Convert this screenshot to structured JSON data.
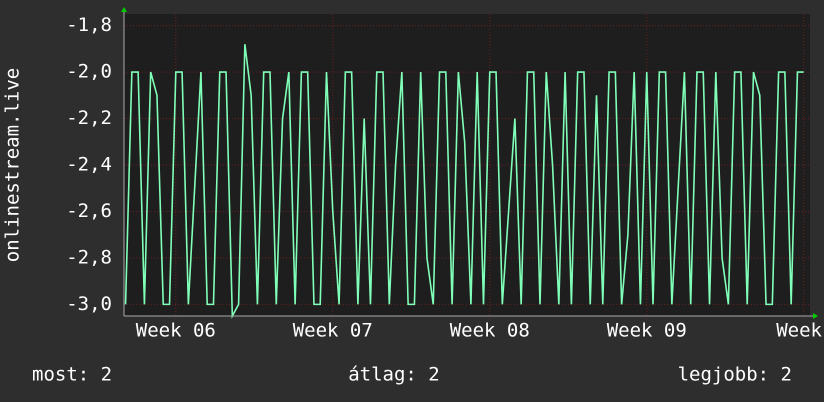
{
  "chart_data": {
    "type": "line",
    "y_label": "onlinestream.live",
    "x": [
      5.68,
      5.72,
      5.76,
      5.8,
      5.84,
      5.88,
      5.92,
      5.96,
      6,
      6.04,
      6.08,
      6.12,
      6.16,
      6.2,
      6.24,
      6.28,
      6.32,
      6.36,
      6.4,
      6.44,
      6.48,
      6.52,
      6.56,
      6.6,
      6.64,
      6.68,
      6.72,
      6.76,
      6.8,
      6.84,
      6.88,
      6.92,
      6.96,
      7,
      7.04,
      7.08,
      7.12,
      7.16,
      7.2,
      7.24,
      7.28,
      7.32,
      7.36,
      7.4,
      7.44,
      7.48,
      7.52,
      7.56,
      7.6,
      7.64,
      7.68,
      7.72,
      7.76,
      7.8,
      7.84,
      7.88,
      7.92,
      7.96,
      8,
      8.04,
      8.08,
      8.12,
      8.16,
      8.2,
      8.24,
      8.28,
      8.32,
      8.36,
      8.4,
      8.44,
      8.48,
      8.52,
      8.56,
      8.6,
      8.64,
      8.68,
      8.72,
      8.76,
      8.8,
      8.84,
      8.88,
      8.92,
      8.96,
      9,
      9.04,
      9.08,
      9.12,
      9.16,
      9.2,
      9.24,
      9.28,
      9.32,
      9.36,
      9.4,
      9.44,
      9.48,
      9.52,
      9.56,
      9.6,
      9.64,
      9.68,
      9.72,
      9.76,
      9.8,
      9.84,
      9.88,
      9.92,
      9.96,
      10
    ],
    "series": [
      {
        "color": "#80ffb8",
        "values": [
          -3,
          -2,
          -2,
          -3,
          -2,
          -2.1,
          -3,
          -3,
          -2,
          -2,
          -3,
          -2.5,
          -2,
          -3,
          -3,
          -2,
          -2,
          -3.05,
          -3,
          -1.88,
          -2.1,
          -3,
          -2,
          -2,
          -3,
          -2.2,
          -2,
          -3,
          -2,
          -2,
          -3,
          -3,
          -2,
          -2.6,
          -3,
          -2,
          -2,
          -3,
          -2.2,
          -3,
          -2,
          -2,
          -3,
          -2.4,
          -2,
          -3,
          -3,
          -2,
          -2.8,
          -3,
          -2,
          -2,
          -3,
          -2,
          -2.3,
          -3,
          -2,
          -3,
          -2,
          -2,
          -3,
          -2.6,
          -2.2,
          -3,
          -2,
          -2,
          -3,
          -2,
          -2.4,
          -3,
          -2,
          -3,
          -2,
          -2,
          -3,
          -2.1,
          -3,
          -2,
          -2,
          -3,
          -2.7,
          -2,
          -3,
          -2,
          -3,
          -2,
          -2,
          -3,
          -2.5,
          -2,
          -3,
          -2,
          -2,
          -3,
          -2,
          -2.8,
          -3,
          -2,
          -2,
          -3,
          -2,
          -2.1,
          -3,
          -3,
          -2,
          -2,
          -3,
          -2,
          -2
        ]
      }
    ],
    "xlim": [
      5.67,
      10.04
    ],
    "xticks": [
      {
        "value": 6,
        "label": "Week 06"
      },
      {
        "value": 7,
        "label": "Week 07"
      },
      {
        "value": 8,
        "label": "Week 08"
      },
      {
        "value": 9,
        "label": "Week 09"
      },
      {
        "value": 10,
        "label": "Week"
      }
    ],
    "ylim": [
      -3.05,
      -1.75
    ],
    "yticks": [
      {
        "value": -3.0,
        "label": "-3,0"
      },
      {
        "value": -2.8,
        "label": "-2,8"
      },
      {
        "value": -2.6,
        "label": "-2,6"
      },
      {
        "value": -2.4,
        "label": "-2,4"
      },
      {
        "value": -2.2,
        "label": "-2,2"
      },
      {
        "value": -2.0,
        "label": "-2,0"
      },
      {
        "value": -1.8,
        "label": "-1,8"
      }
    ],
    "grid": true,
    "stats": [
      "most: 2",
      "átlag: 2",
      "legjobb: 2"
    ]
  }
}
